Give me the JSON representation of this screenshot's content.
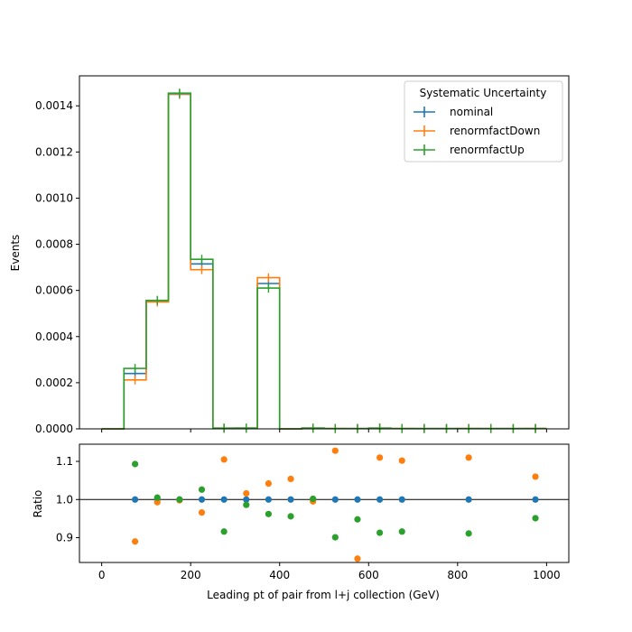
{
  "chart_data": [
    {
      "type": "line",
      "drawstyle": "steps",
      "ylabel": "Events",
      "xlim": [
        -50,
        1050
      ],
      "ylim": [
        0,
        0.00153
      ],
      "y_ticks": [
        "0.0000",
        "0.0002",
        "0.0004",
        "0.0006",
        "0.0008",
        "0.0010",
        "0.0012",
        "0.0014"
      ],
      "x_tick_values": [
        0,
        200,
        400,
        600,
        800,
        1000
      ],
      "bin_edges": [
        0,
        50,
        100,
        150,
        200,
        250,
        300,
        350,
        400,
        450,
        500,
        550,
        600,
        650,
        700,
        750,
        800,
        850,
        900,
        950,
        1000
      ],
      "legend": {
        "title": "Systematic Uncertainty",
        "placement": "top-right"
      },
      "series": [
        {
          "name": "nominal",
          "color": "#1f77b4",
          "values": [
            0,
            0.00024,
            0.000555,
            0.00145,
            0.000715,
            3e-06,
            3e-06,
            0.00063,
            0,
            3e-06,
            1.5e-06,
            1.5e-06,
            3e-06,
            1.5e-06,
            1.5e-06,
            1.5e-06,
            1.5e-06,
            1.5e-06,
            1.5e-06,
            1.5e-06
          ]
        },
        {
          "name": "renormfactDown",
          "color": "#ff7f0e",
          "values": [
            0,
            0.000212,
            0.00055,
            0.001452,
            0.00069,
            3.3e-06,
            3e-06,
            0.000655,
            0,
            3e-06,
            1.7e-06,
            1.3e-06,
            3.3e-06,
            1.7e-06,
            1.5e-06,
            1.5e-06,
            1.7e-06,
            1.5e-06,
            1.5e-06,
            1.6e-06
          ]
        },
        {
          "name": "renormfactUp",
          "color": "#2ca02c",
          "values": [
            0,
            0.000262,
            0.000557,
            0.001455,
            0.000735,
            2.7e-06,
            3e-06,
            0.00061,
            0,
            3e-06,
            1.3e-06,
            1.4e-06,
            2.7e-06,
            1.4e-06,
            1.5e-06,
            1.5e-06,
            1.4e-06,
            1.5e-06,
            1.5e-06,
            1.4e-06
          ]
        }
      ]
    },
    {
      "type": "scatter",
      "xlabel": "Leading pt of pair from l+j collection (GeV)",
      "ylabel": "Ratio",
      "xlim": [
        -50,
        1050
      ],
      "ylim": [
        0.835,
        1.145
      ],
      "y_ticks": [
        "0.9",
        "1.0",
        "1.1"
      ],
      "x_ticks": [
        "0",
        "200",
        "400",
        "600",
        "800",
        "1000"
      ],
      "x_tick_values": [
        0,
        200,
        400,
        600,
        800,
        1000
      ],
      "reference_line": 1.0,
      "series": [
        {
          "name": "nominal",
          "color": "#1f77b4",
          "x": [
            75,
            125,
            175,
            225,
            275,
            325,
            375,
            425,
            475,
            525,
            575,
            625,
            675,
            825,
            975
          ],
          "y": [
            1.0,
            1.0,
            1.0,
            1.0,
            1.0,
            1.0,
            1.0,
            1.0,
            1.0,
            1.0,
            1.0,
            1.0,
            1.0,
            1.0,
            1.0
          ]
        },
        {
          "name": "renormfactDown",
          "color": "#ff7f0e",
          "x": [
            75,
            125,
            175,
            225,
            275,
            325,
            375,
            425,
            475,
            525,
            575,
            625,
            675,
            825,
            975
          ],
          "y": [
            0.89,
            0.993,
            0.998,
            0.966,
            1.105,
            1.016,
            1.042,
            1.054,
            0.995,
            1.128,
            0.845,
            1.11,
            1.102,
            1.11,
            1.06
          ]
        },
        {
          "name": "renormfactUp",
          "color": "#2ca02c",
          "x": [
            75,
            125,
            175,
            225,
            275,
            325,
            375,
            425,
            475,
            525,
            575,
            625,
            675,
            825,
            975
          ],
          "y": [
            1.093,
            1.005,
            1.0,
            1.026,
            0.916,
            0.986,
            0.962,
            0.956,
            1.002,
            0.901,
            0.948,
            0.913,
            0.916,
            0.911,
            0.951
          ]
        }
      ]
    }
  ]
}
